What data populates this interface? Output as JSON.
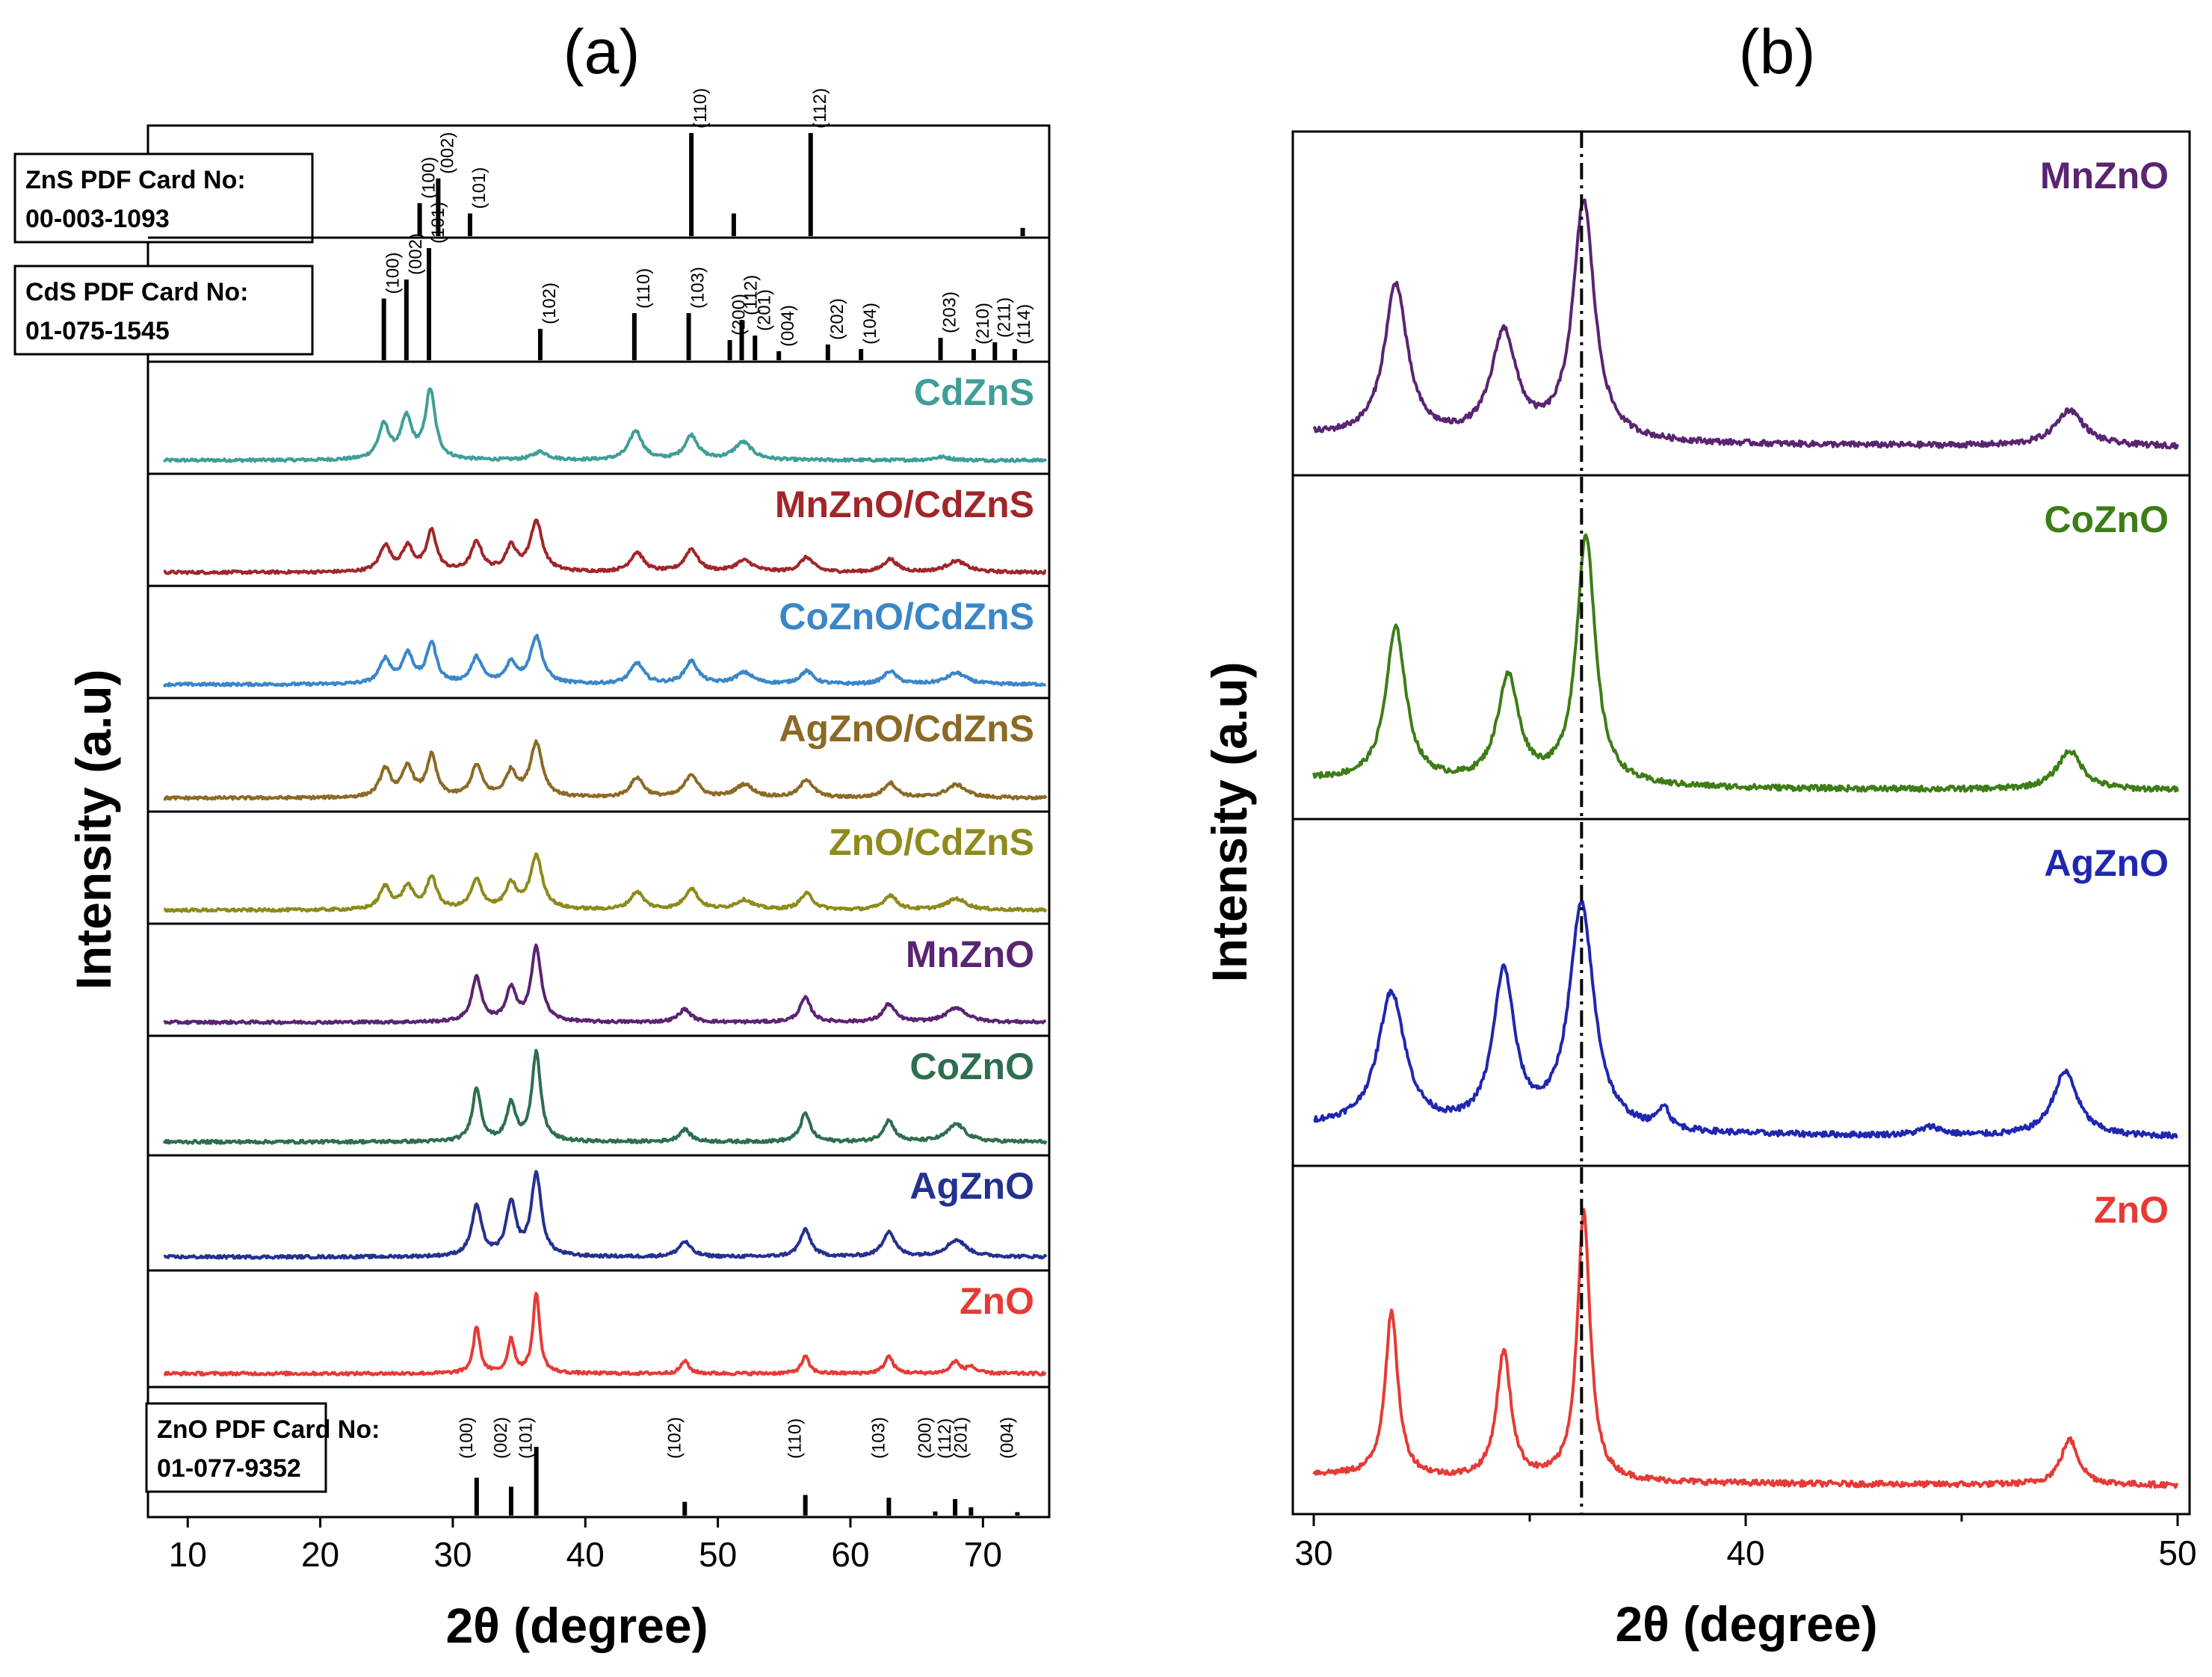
{
  "chart_data": [
    {
      "panel_label": "(a)",
      "type": "line",
      "xlabel": "2θ (degree)",
      "ylabel": "Intensity (a.u)",
      "xlim": [
        7,
        75
      ],
      "xticks": [
        10,
        20,
        30,
        40,
        50,
        60,
        70
      ],
      "tick_labels": [
        "10",
        "20",
        "30",
        "40",
        "50",
        "60",
        "70"
      ],
      "reference_cards": [
        {
          "id": "zns",
          "title": "ZnS PDF Card No:",
          "number": "00-003-1093",
          "lines": [
            {
              "x": 27.5,
              "h": 0.32,
              "hkl": "(100)"
            },
            {
              "x": 28.9,
              "h": 0.56,
              "hkl": "(002)"
            },
            {
              "x": 31.3,
              "h": 0.22,
              "hkl": "(101)"
            },
            {
              "x": 48.0,
              "h": 1.0,
              "hkl": "(110)"
            },
            {
              "x": 51.2,
              "h": 0.22,
              "hkl": ""
            },
            {
              "x": 57.0,
              "h": 1.0,
              "hkl": "(112)"
            },
            {
              "x": 73.0,
              "h": 0.08,
              "hkl": ""
            }
          ]
        },
        {
          "id": "cds",
          "title": "CdS PDF Card No:",
          "number": "01-075-1545",
          "lines": [
            {
              "x": 24.8,
              "h": 0.55,
              "hkl": "(100)"
            },
            {
              "x": 26.5,
              "h": 0.72,
              "hkl": "(002)"
            },
            {
              "x": 28.2,
              "h": 1.0,
              "hkl": "(101)"
            },
            {
              "x": 36.6,
              "h": 0.28,
              "hkl": "(102)"
            },
            {
              "x": 43.7,
              "h": 0.42,
              "hkl": "(110)"
            },
            {
              "x": 47.8,
              "h": 0.42,
              "hkl": "(103)"
            },
            {
              "x": 50.9,
              "h": 0.18,
              "hkl": "(200)"
            },
            {
              "x": 51.8,
              "h": 0.36,
              "hkl": "(112)"
            },
            {
              "x": 52.8,
              "h": 0.22,
              "hkl": "(201)"
            },
            {
              "x": 54.6,
              "h": 0.08,
              "hkl": "(004)"
            },
            {
              "x": 58.3,
              "h": 0.14,
              "hkl": "(202)"
            },
            {
              "x": 60.8,
              "h": 0.1,
              "hkl": "(104)"
            },
            {
              "x": 66.8,
              "h": 0.2,
              "hkl": "(203)"
            },
            {
              "x": 69.3,
              "h": 0.1,
              "hkl": "(210)"
            },
            {
              "x": 70.9,
              "h": 0.16,
              "hkl": "(211)"
            },
            {
              "x": 72.4,
              "h": 0.1,
              "hkl": "(114)"
            }
          ]
        },
        {
          "id": "zno",
          "title": "ZnO PDF Card No:",
          "number": "01-077-9352",
          "lines": [
            {
              "x": 31.8,
              "h": 0.55,
              "hkl": "(100)"
            },
            {
              "x": 34.4,
              "h": 0.42,
              "hkl": "(002)"
            },
            {
              "x": 36.3,
              "h": 1.0,
              "hkl": "(101)"
            },
            {
              "x": 47.5,
              "h": 0.2,
              "hkl": "(102)"
            },
            {
              "x": 56.6,
              "h": 0.3,
              "hkl": "(110)"
            },
            {
              "x": 62.9,
              "h": 0.26,
              "hkl": "(103)"
            },
            {
              "x": 66.4,
              "h": 0.06,
              "hkl": "(200)"
            },
            {
              "x": 67.9,
              "h": 0.24,
              "hkl": "(112)"
            },
            {
              "x": 69.1,
              "h": 0.12,
              "hkl": "(201)"
            },
            {
              "x": 72.6,
              "h": 0.05,
              "hkl": "(004)"
            }
          ]
        }
      ],
      "series": [
        {
          "name": "CdZnS",
          "color": "#3f9e97",
          "peaks": [
            [
              24.8,
              0.42,
              0.5
            ],
            [
              26.5,
              0.5,
              0.5
            ],
            [
              28.3,
              0.85,
              0.45
            ],
            [
              36.6,
              0.1,
              0.7
            ],
            [
              43.8,
              0.36,
              0.6
            ],
            [
              48.0,
              0.3,
              0.6
            ],
            [
              51.9,
              0.22,
              0.8
            ],
            [
              66.9,
              0.04,
              0.8
            ]
          ]
        },
        {
          "name": "MnZnO/CdZnS",
          "color": "#a0262a",
          "peaks": [
            [
              24.9,
              0.32,
              0.5
            ],
            [
              26.6,
              0.3,
              0.5
            ],
            [
              28.4,
              0.5,
              0.45
            ],
            [
              31.8,
              0.36,
              0.5
            ],
            [
              34.4,
              0.3,
              0.5
            ],
            [
              36.3,
              0.62,
              0.55
            ],
            [
              43.9,
              0.24,
              0.6
            ],
            [
              48.0,
              0.28,
              0.6
            ],
            [
              52.0,
              0.14,
              0.8
            ],
            [
              56.7,
              0.18,
              0.6
            ],
            [
              63.0,
              0.16,
              0.6
            ],
            [
              68.0,
              0.14,
              0.9
            ]
          ]
        },
        {
          "name": "CoZnO/CdZnS",
          "color": "#3a86c8",
          "peaks": [
            [
              24.9,
              0.3,
              0.5
            ],
            [
              26.6,
              0.36,
              0.5
            ],
            [
              28.4,
              0.5,
              0.45
            ],
            [
              31.8,
              0.32,
              0.5
            ],
            [
              34.4,
              0.25,
              0.5
            ],
            [
              36.3,
              0.58,
              0.55
            ],
            [
              43.9,
              0.26,
              0.6
            ],
            [
              48.0,
              0.28,
              0.6
            ],
            [
              52.0,
              0.14,
              0.8
            ],
            [
              56.7,
              0.16,
              0.6
            ],
            [
              63.0,
              0.16,
              0.6
            ],
            [
              68.0,
              0.14,
              0.9
            ]
          ]
        },
        {
          "name": "AgZnO/CdZnS",
          "color": "#8b6a25",
          "peaks": [
            [
              24.9,
              0.34,
              0.5
            ],
            [
              26.6,
              0.36,
              0.5
            ],
            [
              28.4,
              0.5,
              0.45
            ],
            [
              31.8,
              0.38,
              0.5
            ],
            [
              34.4,
              0.3,
              0.5
            ],
            [
              36.3,
              0.66,
              0.55
            ],
            [
              43.9,
              0.24,
              0.6
            ],
            [
              48.0,
              0.28,
              0.6
            ],
            [
              52.0,
              0.16,
              0.8
            ],
            [
              56.7,
              0.22,
              0.6
            ],
            [
              63.0,
              0.18,
              0.6
            ],
            [
              68.0,
              0.16,
              0.9
            ]
          ]
        },
        {
          "name": "ZnO/CdZnS",
          "color": "#8e8a1c",
          "peaks": [
            [
              24.9,
              0.28,
              0.5
            ],
            [
              26.6,
              0.28,
              0.5
            ],
            [
              28.4,
              0.4,
              0.45
            ],
            [
              31.8,
              0.36,
              0.5
            ],
            [
              34.4,
              0.3,
              0.5
            ],
            [
              36.3,
              0.66,
              0.55
            ],
            [
              43.9,
              0.22,
              0.6
            ],
            [
              48.0,
              0.26,
              0.6
            ],
            [
              52.0,
              0.12,
              0.8
            ],
            [
              56.7,
              0.2,
              0.6
            ],
            [
              63.0,
              0.18,
              0.6
            ],
            [
              68.0,
              0.14,
              0.9
            ]
          ]
        },
        {
          "name": "MnZnO",
          "color": "#5a2472",
          "peaks": [
            [
              31.8,
              0.55,
              0.45
            ],
            [
              34.4,
              0.4,
              0.45
            ],
            [
              36.3,
              0.92,
              0.45
            ],
            [
              47.5,
              0.16,
              0.55
            ],
            [
              56.6,
              0.3,
              0.5
            ],
            [
              62.9,
              0.22,
              0.55
            ],
            [
              68.0,
              0.18,
              0.9
            ]
          ]
        },
        {
          "name": "CoZnO",
          "color": "#2e6e4f",
          "peaks": [
            [
              31.8,
              0.6,
              0.4
            ],
            [
              34.4,
              0.42,
              0.4
            ],
            [
              36.3,
              1.0,
              0.4
            ],
            [
              47.5,
              0.14,
              0.5
            ],
            [
              56.6,
              0.32,
              0.45
            ],
            [
              62.9,
              0.24,
              0.5
            ],
            [
              68.0,
              0.2,
              0.8
            ]
          ]
        },
        {
          "name": "AgZnO",
          "color": "#23318f",
          "peaks": [
            [
              31.8,
              0.6,
              0.45
            ],
            [
              34.4,
              0.62,
              0.45
            ],
            [
              36.3,
              0.98,
              0.45
            ],
            [
              47.5,
              0.18,
              0.55
            ],
            [
              56.6,
              0.32,
              0.5
            ],
            [
              62.9,
              0.3,
              0.55
            ],
            [
              68.0,
              0.2,
              0.9
            ]
          ]
        },
        {
          "name": "ZnO",
          "color": "#e63a36",
          "peaks": [
            [
              31.8,
              0.55,
              0.3
            ],
            [
              34.4,
              0.4,
              0.3
            ],
            [
              36.3,
              0.95,
              0.3
            ],
            [
              47.5,
              0.15,
              0.35
            ],
            [
              56.6,
              0.2,
              0.35
            ],
            [
              62.9,
              0.2,
              0.4
            ],
            [
              67.9,
              0.14,
              0.4
            ],
            [
              69.1,
              0.08,
              0.4
            ]
          ]
        }
      ]
    },
    {
      "panel_label": "(b)",
      "type": "line",
      "xlabel": "2θ (degree)",
      "ylabel": "Intensity (a.u)",
      "xlim": [
        30,
        50
      ],
      "xticks": [
        30,
        40,
        50
      ],
      "tick_labels": [
        "30",
        "40",
        "50"
      ],
      "reference_line_x": 36.2,
      "series": [
        {
          "name": "MnZnO",
          "color": "#5a2472",
          "peaks": [
            [
              31.9,
              0.55,
              0.32
            ],
            [
              34.4,
              0.38,
              0.35
            ],
            [
              36.25,
              0.86,
              0.3
            ],
            [
              47.5,
              0.13,
              0.4
            ]
          ]
        },
        {
          "name": "CoZnO",
          "color": "#3d7d17",
          "peaks": [
            [
              31.9,
              0.55,
              0.28
            ],
            [
              34.5,
              0.38,
              0.3
            ],
            [
              36.3,
              0.9,
              0.26
            ],
            [
              47.5,
              0.14,
              0.35
            ]
          ]
        },
        {
          "name": "AgZnO",
          "color": "#1f27b0",
          "peaks": [
            [
              31.8,
              0.48,
              0.38
            ],
            [
              34.4,
              0.55,
              0.3
            ],
            [
              36.2,
              0.8,
              0.35
            ],
            [
              38.1,
              0.08,
              0.15
            ],
            [
              44.3,
              0.03,
              0.3
            ],
            [
              47.4,
              0.23,
              0.35
            ]
          ]
        },
        {
          "name": "ZnO",
          "color": "#e63a36",
          "peaks": [
            [
              31.8,
              0.58,
              0.18
            ],
            [
              34.4,
              0.45,
              0.2
            ],
            [
              36.25,
              0.95,
              0.18
            ],
            [
              47.5,
              0.16,
              0.25
            ]
          ]
        }
      ]
    }
  ]
}
